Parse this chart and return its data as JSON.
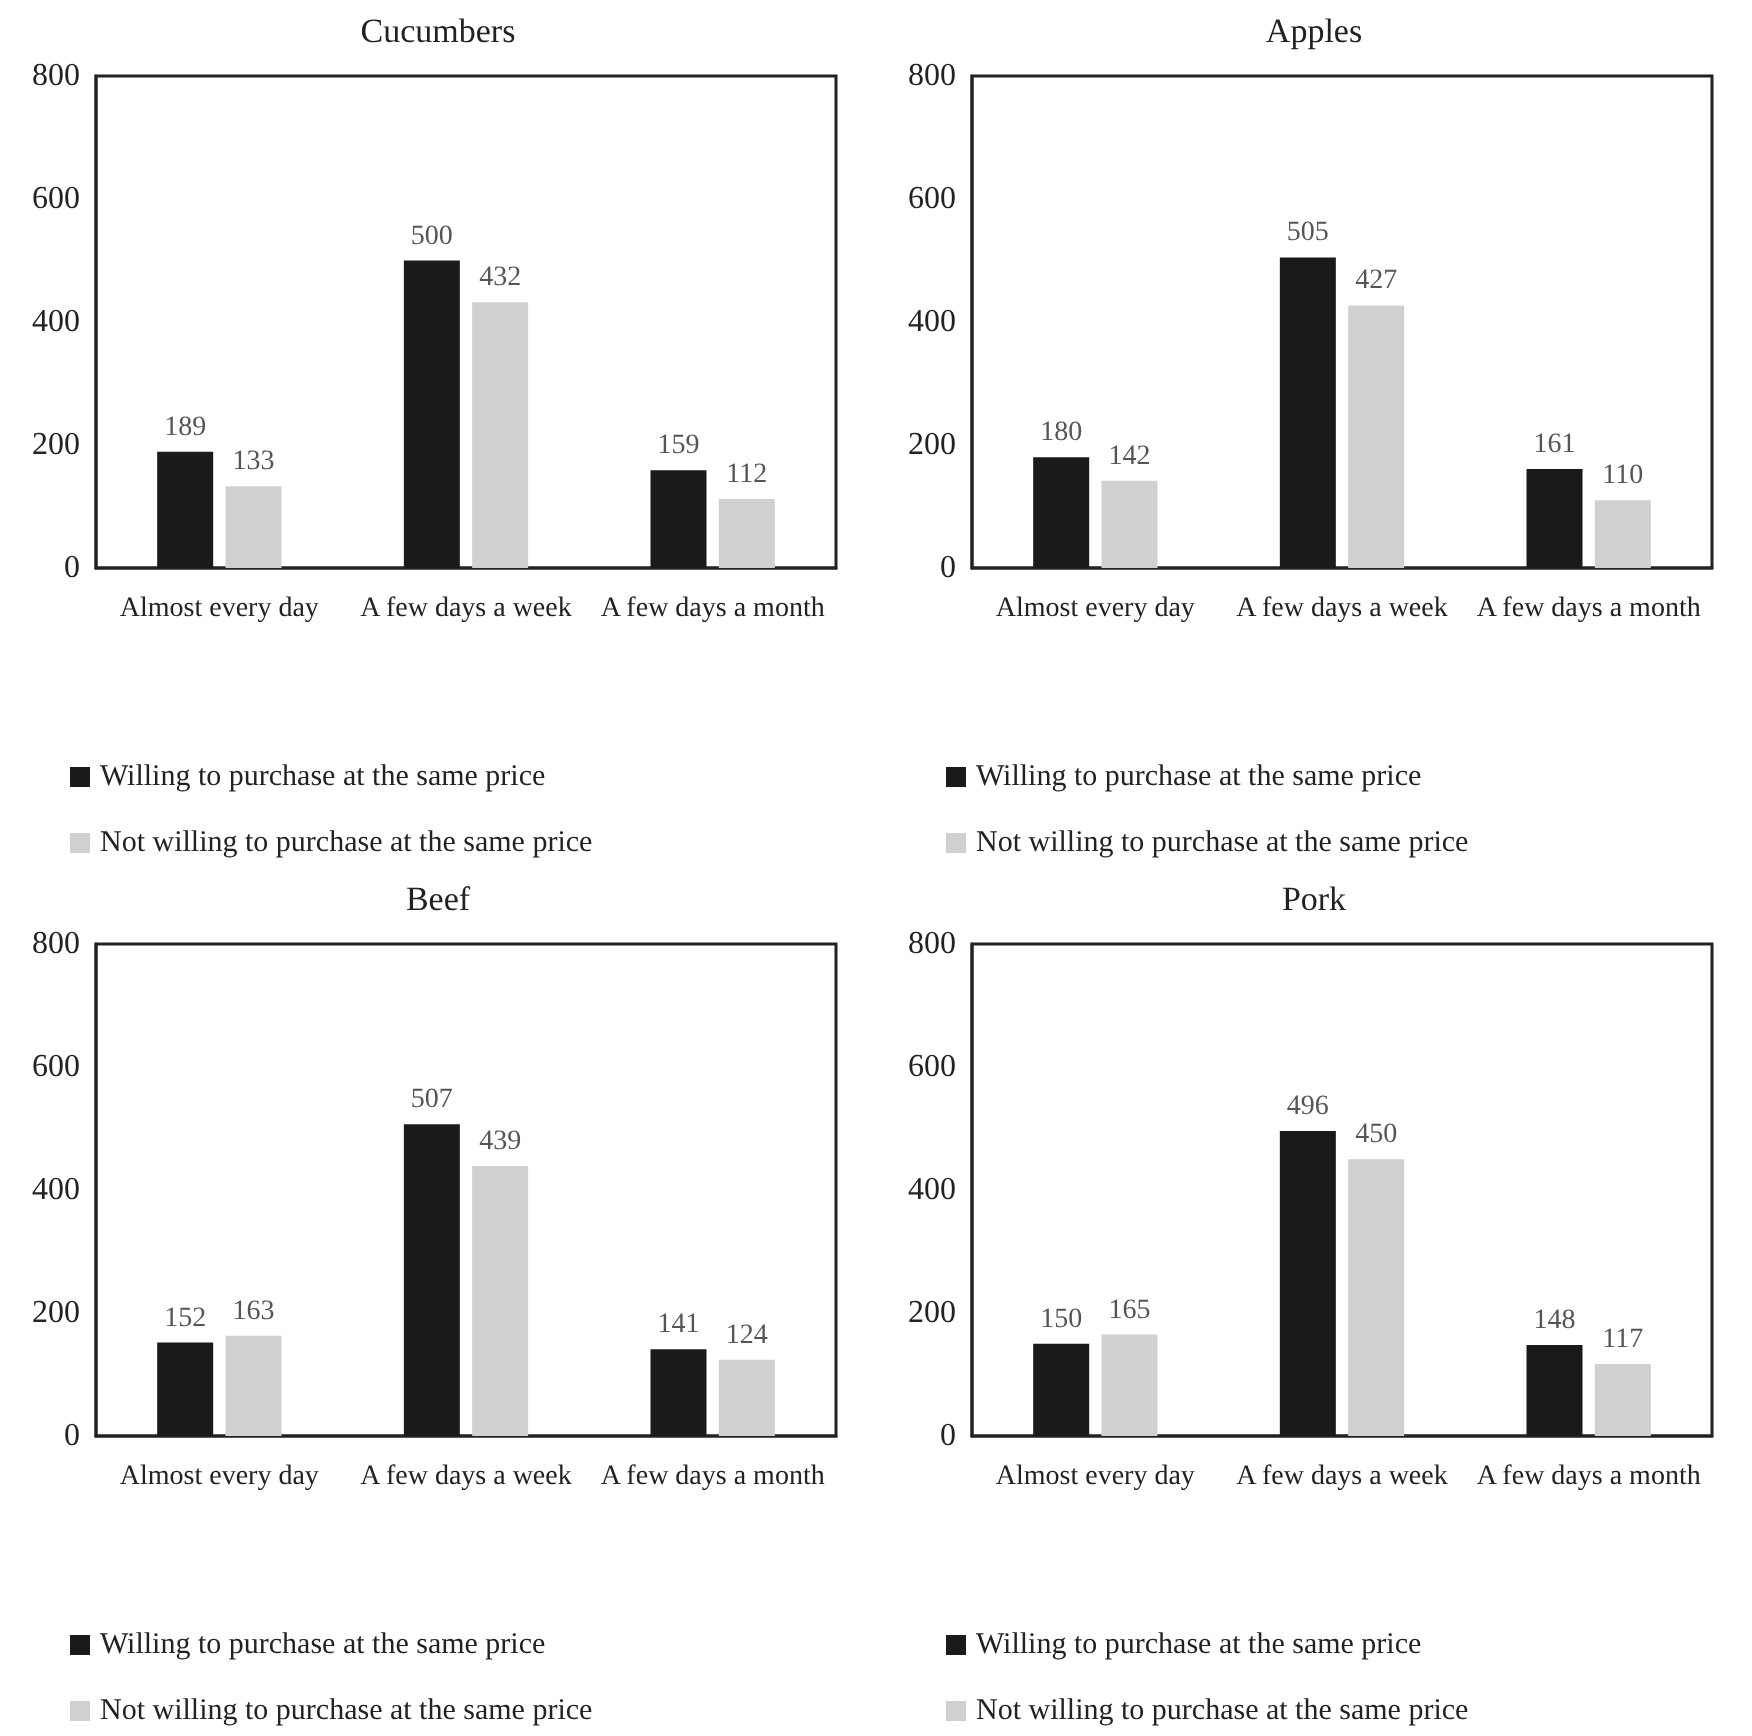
{
  "chart_data": [
    {
      "type": "bar",
      "title": "Cucumbers",
      "categories": [
        "Almost every day",
        "A few days a week",
        "A few days a month"
      ],
      "series": [
        {
          "name": "Willing to purchase at the same price",
          "color": "#1a1a1a",
          "values": [
            189,
            500,
            159
          ]
        },
        {
          "name": "Not willing to purchase at the same price",
          "color": "#cfd0cf",
          "values": [
            133,
            432,
            112
          ]
        }
      ],
      "ylim": [
        0,
        800
      ],
      "yticks": [
        0,
        200,
        400,
        600,
        800
      ],
      "grid": false,
      "legend": "bottom",
      "data_labels": true
    },
    {
      "type": "bar",
      "title": "Apples",
      "categories": [
        "Almost every day",
        "A few days a week",
        "A few days a month"
      ],
      "series": [
        {
          "name": "Willing to purchase at the same price",
          "color": "#1a1a1a",
          "values": [
            180,
            505,
            161
          ]
        },
        {
          "name": "Not willing to purchase at the same price",
          "color": "#cfd0cf",
          "values": [
            142,
            427,
            110
          ]
        }
      ],
      "ylim": [
        0,
        800
      ],
      "yticks": [
        0,
        200,
        400,
        600,
        800
      ],
      "grid": false,
      "legend": "bottom",
      "data_labels": true
    },
    {
      "type": "bar",
      "title": "Beef",
      "categories": [
        "Almost every day",
        "A few days a week",
        "A few days a month"
      ],
      "series": [
        {
          "name": "Willing to purchase at the same price",
          "color": "#1a1a1a",
          "values": [
            152,
            507,
            141
          ]
        },
        {
          "name": "Not willing to purchase at the same price",
          "color": "#cfd0cf",
          "values": [
            163,
            439,
            124
          ]
        }
      ],
      "ylim": [
        0,
        800
      ],
      "yticks": [
        0,
        200,
        400,
        600,
        800
      ],
      "grid": false,
      "legend": "bottom",
      "data_labels": true
    },
    {
      "type": "bar",
      "title": "Pork",
      "categories": [
        "Almost every day",
        "A few days a week",
        "A few days a month"
      ],
      "series": [
        {
          "name": "Willing to purchase at the same price",
          "color": "#1a1a1a",
          "values": [
            150,
            496,
            148
          ]
        },
        {
          "name": "Not willing to purchase at the same price",
          "color": "#cfd0cf",
          "values": [
            165,
            450,
            117
          ]
        }
      ],
      "ylim": [
        0,
        800
      ],
      "yticks": [
        0,
        200,
        400,
        600,
        800
      ],
      "grid": false,
      "legend": "bottom",
      "data_labels": true
    }
  ]
}
